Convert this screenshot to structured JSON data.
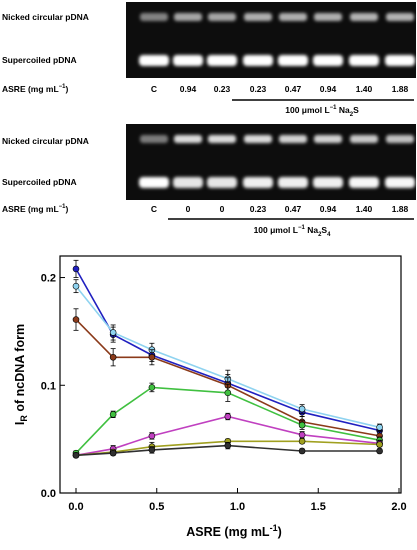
{
  "gel_panels": [
    {
      "row_label_top": "Nicked circular pDNA",
      "row_label_bottom": "Supercoiled pDNA",
      "lane_axis_label": "ASRE (mg mL",
      "lane_axis_exp": "−1",
      "lane_axis_close": ")",
      "lanes": [
        "C",
        "0.94",
        "0.23",
        "0.23",
        "0.47",
        "0.94",
        "1.40",
        "1.88"
      ],
      "treatment_prefix": "100 μmol L",
      "treatment_exp": "−1",
      "treatment_compound": "Na",
      "treatment_sub": "2",
      "treatment_suffix": "S",
      "top_band_intensity": [
        0.35,
        0.55,
        0.55,
        0.6,
        0.6,
        0.6,
        0.62,
        0.62
      ],
      "bottom_band_intensity": [
        1.0,
        1.0,
        1.0,
        1.0,
        1.0,
        1.0,
        1.0,
        1.0
      ]
    },
    {
      "row_label_top": "Nicked circular pDNA",
      "row_label_bottom": "Supercoiled pDNA",
      "lane_axis_label": "ASRE (mg mL",
      "lane_axis_exp": "−1",
      "lane_axis_close": ")",
      "lanes": [
        "C",
        "0",
        "0",
        "0.23",
        "0.47",
        "0.94",
        "1.40",
        "1.88"
      ],
      "treatment_prefix": "100 μmol L",
      "treatment_exp": "−1",
      "treatment_compound": "Na",
      "treatment_sub": "2",
      "treatment_suffix": "S",
      "treatment_sub2": "4",
      "top_band_intensity": [
        0.3,
        0.85,
        0.85,
        0.85,
        0.8,
        0.8,
        0.75,
        0.7
      ],
      "bottom_band_intensity": [
        1.0,
        0.85,
        0.85,
        0.9,
        0.9,
        0.9,
        0.95,
        0.95
      ]
    }
  ],
  "chart_data": {
    "type": "line",
    "xlabel_main": "ASRE  (mg mL",
    "xlabel_exp": "-1",
    "xlabel_close": ")",
    "ylabel_main": "I",
    "ylabel_sub": "R",
    "ylabel_rest": " of ncDNA form",
    "xlim": [
      0,
      2.0
    ],
    "ylim": [
      0,
      0.22
    ],
    "x_ticks": [
      0.0,
      0.5,
      1.0,
      1.5,
      2.0
    ],
    "x_tick_labels": [
      "0.0",
      "0.5",
      "1.0",
      "1.5",
      "2.0"
    ],
    "y_ticks": [
      0.0,
      0.1,
      0.2
    ],
    "y_tick_labels": [
      "0.0",
      "0.1",
      "0.2"
    ],
    "x": [
      0.0,
      0.23,
      0.47,
      0.94,
      1.4,
      1.88
    ],
    "series": [
      {
        "color": "#2020c0",
        "values": [
          0.208,
          0.147,
          0.128,
          0.102,
          0.075,
          0.058
        ],
        "errors": [
          0.008,
          0.007,
          0.006,
          0.008,
          0.004,
          0.003
        ]
      },
      {
        "color": "#8fd3f0",
        "values": [
          0.192,
          0.149,
          0.133,
          0.106,
          0.078,
          0.061
        ],
        "errors": [
          0.006,
          0.007,
          0.006,
          0.008,
          0.004,
          0.003
        ]
      },
      {
        "color": "#8b3a1a",
        "values": [
          0.161,
          0.126,
          0.126,
          0.1,
          0.066,
          0.053
        ],
        "errors": [
          0.01,
          0.008,
          0.007,
          0.007,
          0.005,
          0.004
        ]
      },
      {
        "color": "#40c040",
        "values": [
          0.037,
          0.073,
          0.098,
          0.093,
          0.063,
          0.049
        ],
        "errors": [
          0.002,
          0.003,
          0.004,
          0.008,
          0.004,
          0.003
        ]
      },
      {
        "color": "#c040c0",
        "values": [
          0.035,
          0.041,
          0.053,
          0.071,
          0.054,
          0.046
        ],
        "errors": [
          0.002,
          0.003,
          0.003,
          0.003,
          0.003,
          0.003
        ]
      },
      {
        "color": "#a0a020",
        "values": [
          0.035,
          0.038,
          0.043,
          0.048,
          0.048,
          0.045
        ],
        "errors": [
          0.002,
          0.002,
          0.004,
          0.002,
          0.002,
          0.002
        ]
      },
      {
        "color": "#303030",
        "values": [
          0.035,
          0.037,
          0.04,
          0.044,
          0.039,
          0.039
        ],
        "errors": [
          0.002,
          0.002,
          0.003,
          0.003,
          0.002,
          0.002
        ]
      }
    ]
  }
}
